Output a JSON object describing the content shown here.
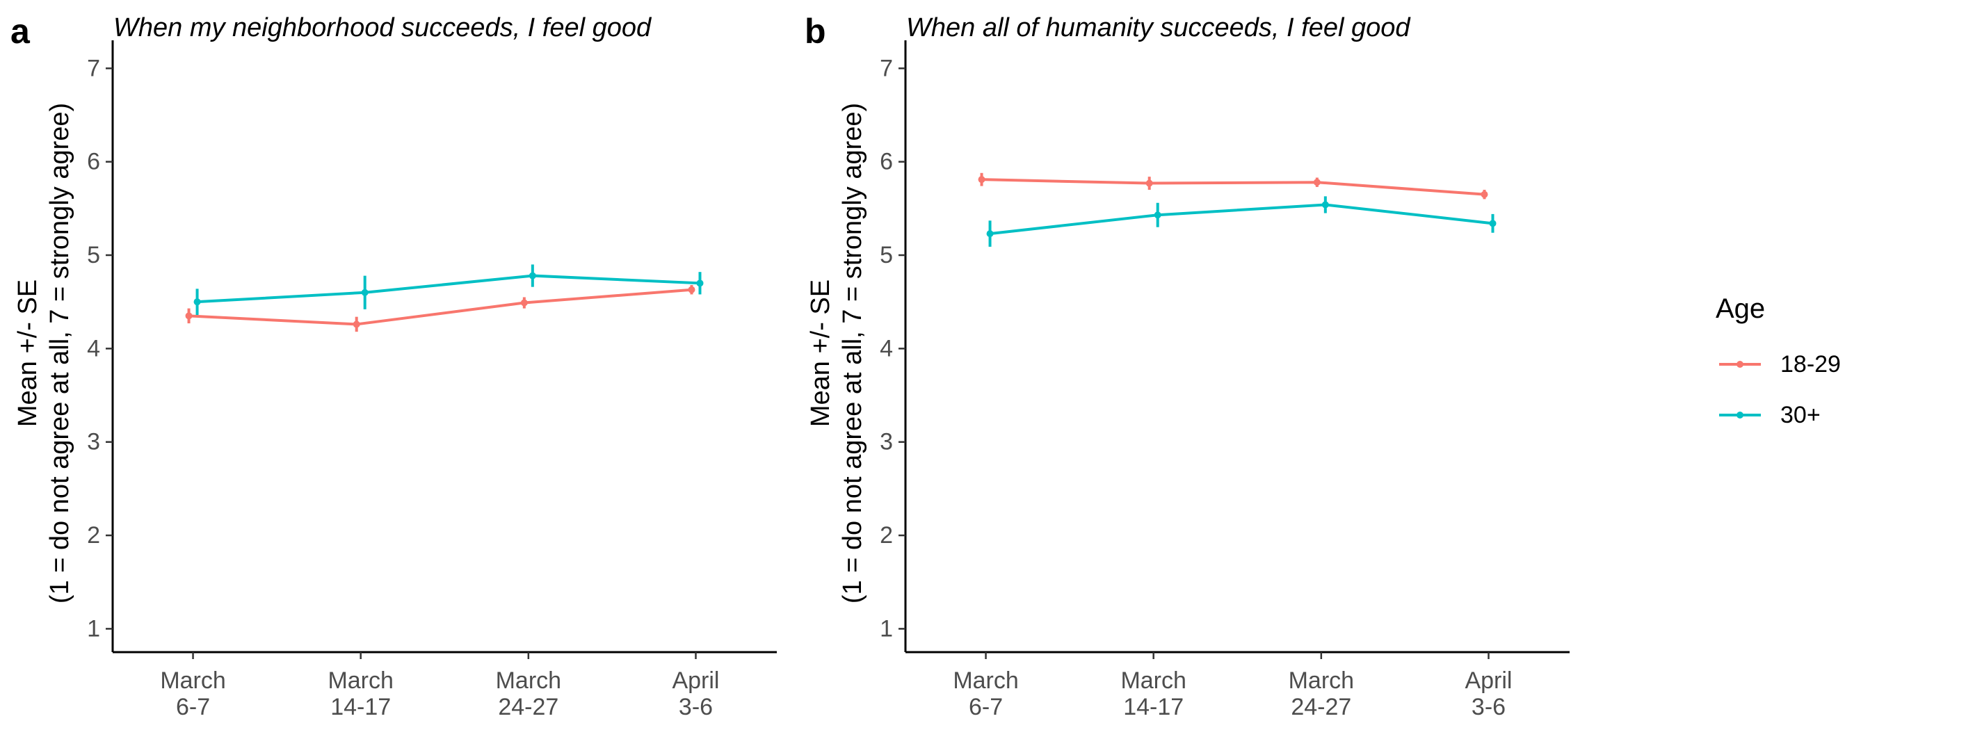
{
  "chart_data": [
    {
      "type": "line",
      "panel_label": "a",
      "title": "When my neighborhood succeeds, I feel good",
      "ylabel_line1": "Mean +/- SE",
      "ylabel_line2": "(1 = do not agree at all, 7 = strongly agree)",
      "xlabel": "",
      "categories": [
        [
          "March",
          "6-7"
        ],
        [
          "March",
          "14-17"
        ],
        [
          "March",
          "24-27"
        ],
        [
          "April",
          "3-6"
        ]
      ],
      "ylim": [
        0.75,
        7.3
      ],
      "yticks": [
        1,
        2,
        3,
        4,
        5,
        6,
        7
      ],
      "grid": false,
      "series": [
        {
          "name": "18-29",
          "color": "#F8766D",
          "values": [
            4.35,
            4.26,
            4.49,
            4.63
          ],
          "se": [
            0.08,
            0.08,
            0.06,
            0.05
          ]
        },
        {
          "name": "30+",
          "color": "#00BFC4",
          "values": [
            4.5,
            4.6,
            4.78,
            4.7
          ],
          "se": [
            0.14,
            0.18,
            0.12,
            0.12
          ]
        }
      ]
    },
    {
      "type": "line",
      "panel_label": "b",
      "title": "When all of humanity succeeds, I feel good",
      "ylabel_line1": "Mean +/- SE",
      "ylabel_line2": "(1 = do not agree at all, 7 = strongly agree)",
      "xlabel": "",
      "categories": [
        [
          "March",
          "6-7"
        ],
        [
          "March",
          "14-17"
        ],
        [
          "March",
          "24-27"
        ],
        [
          "April",
          "3-6"
        ]
      ],
      "ylim": [
        0.75,
        7.3
      ],
      "yticks": [
        1,
        2,
        3,
        4,
        5,
        6,
        7
      ],
      "grid": false,
      "series": [
        {
          "name": "18-29",
          "color": "#F8766D",
          "values": [
            5.81,
            5.77,
            5.78,
            5.65
          ],
          "se": [
            0.07,
            0.07,
            0.05,
            0.05
          ]
        },
        {
          "name": "30+",
          "color": "#00BFC4",
          "values": [
            5.23,
            5.43,
            5.54,
            5.34
          ],
          "se": [
            0.14,
            0.13,
            0.09,
            0.1
          ]
        }
      ]
    }
  ],
  "legend": {
    "title": "Age",
    "placement": "right",
    "items": [
      {
        "label": "18-29",
        "color": "#F8766D"
      },
      {
        "label": "30+",
        "color": "#00BFC4"
      }
    ]
  }
}
